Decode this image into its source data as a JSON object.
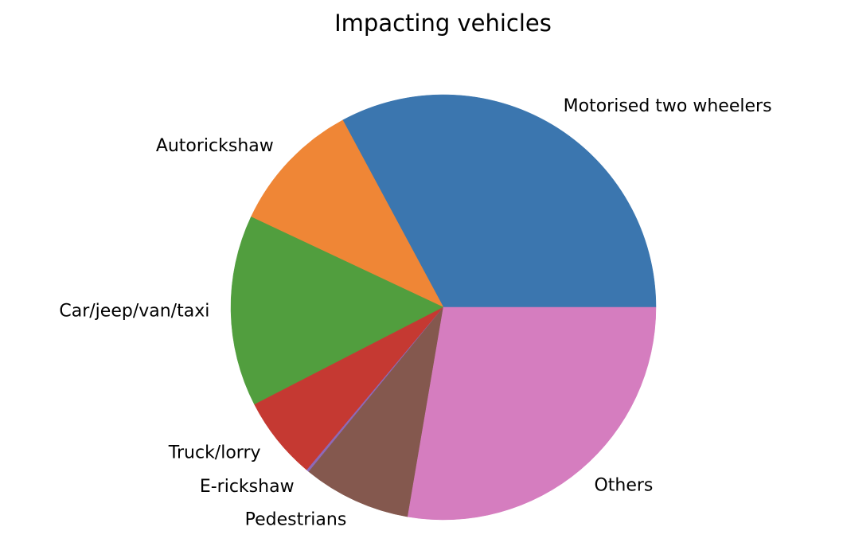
{
  "chart_data": {
    "type": "pie",
    "title": "Impacting vehicles",
    "start_angle_deg": 0,
    "direction": "counterclockwise",
    "legend": "none",
    "slices": [
      {
        "label": "Motorised two wheelers",
        "value": 34.3,
        "color": "#3b76af"
      },
      {
        "label": "Autorickshaw",
        "value": 10.6,
        "color": "#ef8636"
      },
      {
        "label": "Car/jeep/van/taxi",
        "value": 15.2,
        "color": "#519e3e"
      },
      {
        "label": "Truck/lorry",
        "value": 6.6,
        "color": "#c53932"
      },
      {
        "label": "E-rickshaw",
        "value": 0.2,
        "color": "#8d69b8"
      },
      {
        "label": "Pedestrians",
        "value": 8.6,
        "color": "#84584e"
      },
      {
        "label": "Others",
        "value": 28.9,
        "color": "#d57dbf"
      }
    ]
  }
}
